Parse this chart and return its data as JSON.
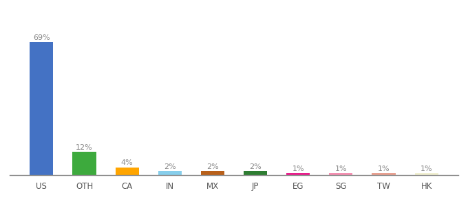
{
  "categories": [
    "US",
    "OTH",
    "CA",
    "IN",
    "MX",
    "JP",
    "EG",
    "SG",
    "TW",
    "HK"
  ],
  "values": [
    69,
    12,
    4,
    2,
    2,
    2,
    1,
    1,
    1,
    1
  ],
  "colors": [
    "#4472C4",
    "#3DAA3D",
    "#FFA500",
    "#87CEEB",
    "#B8601A",
    "#2E7D32",
    "#E91E8C",
    "#F48FB1",
    "#E8A090",
    "#F0EFD0"
  ],
  "labels": [
    "69%",
    "12%",
    "4%",
    "2%",
    "2%",
    "2%",
    "1%",
    "1%",
    "1%",
    "1%"
  ],
  "ylim": [
    0,
    78
  ],
  "background_color": "#ffffff",
  "label_color": "#888888",
  "bar_width": 0.55
}
